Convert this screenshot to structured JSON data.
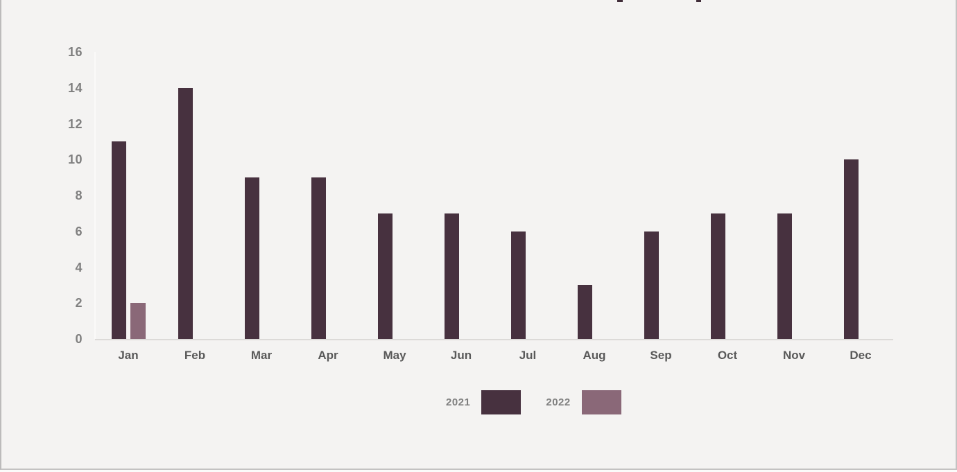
{
  "window": {
    "background": "#f4f3f2",
    "border_color": "#c3c2c2"
  },
  "chart_data": {
    "type": "bar",
    "title": "",
    "categories": [
      "Jan",
      "Feb",
      "Mar",
      "Apr",
      "May",
      "Jun",
      "Jul",
      "Aug",
      "Sep",
      "Oct",
      "Nov",
      "Dec"
    ],
    "series": [
      {
        "name": "2021",
        "color": "#47313F",
        "values": [
          11,
          14,
          9,
          9,
          7,
          7,
          6,
          3,
          6,
          7,
          7,
          10
        ]
      },
      {
        "name": "2022",
        "color": "#8A6878",
        "values": [
          2,
          null,
          null,
          null,
          null,
          null,
          null,
          null,
          null,
          null,
          null,
          null
        ]
      }
    ],
    "ylim": [
      0,
      16
    ],
    "yticks": [
      0,
      2,
      4,
      6,
      8,
      10,
      12,
      14,
      16
    ],
    "xlabel": "",
    "ylabel": "",
    "grid": false,
    "legend_position": "bottom-center",
    "colors": {
      "y_tick_label": "#7f7f7f",
      "x_tick_label": "#595959",
      "legend_label": "#7f7f7f",
      "axis_line": "#dcdad8"
    }
  }
}
